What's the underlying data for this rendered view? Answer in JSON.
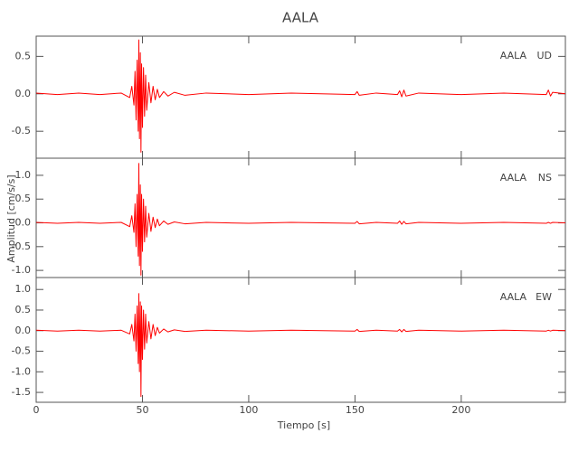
{
  "chart_data": {
    "title": "AALA",
    "ylabel": "Amplitud [cm/s/s]",
    "xlabel": "Tiempo [s]",
    "xlim": [
      0,
      249
    ],
    "xticks": [
      0,
      50,
      100,
      150,
      200
    ],
    "x": [
      0,
      10,
      20,
      30,
      40,
      44,
      45,
      46,
      46.5,
      47,
      47.5,
      48,
      48.3,
      48.6,
      49,
      49.3,
      49.6,
      50,
      50.5,
      51,
      51.5,
      52,
      53,
      54,
      55,
      56,
      57,
      58,
      60,
      62,
      65,
      70,
      80,
      100,
      120,
      150,
      151,
      152,
      160,
      170,
      171,
      172,
      173,
      174,
      180,
      200,
      220,
      240,
      241,
      242,
      243,
      249
    ],
    "panels": [
      {
        "type": "line",
        "station": "AALA",
        "component": "UD",
        "color": "#ff0000",
        "ylim": [
          -0.86,
          0.77
        ],
        "yticks": [
          -0.5,
          {
            "value": 0,
            "label": "0.0"
          },
          0.5
        ],
        "values": [
          0.01,
          -0.01,
          0.01,
          -0.01,
          0.01,
          -0.05,
          0.1,
          -0.15,
          0.3,
          -0.35,
          0.45,
          -0.5,
          0.72,
          -0.6,
          0.55,
          -0.78,
          0.4,
          -0.45,
          0.35,
          -0.3,
          0.25,
          -0.22,
          0.15,
          -0.12,
          0.1,
          -0.08,
          0.06,
          -0.05,
          0.03,
          -0.03,
          0.02,
          -0.02,
          0.01,
          -0.01,
          0.01,
          -0.01,
          0.03,
          -0.02,
          0.01,
          -0.01,
          0.04,
          -0.04,
          0.05,
          -0.03,
          0.01,
          -0.01,
          0.01,
          -0.01,
          0.05,
          -0.03,
          0.02,
          0
        ]
      },
      {
        "type": "line",
        "station": "AALA",
        "component": "NS",
        "color": "#ff0000",
        "ylim": [
          -1.15,
          1.36
        ],
        "yticks": [
          {
            "value": -1,
            "label": "-1.0"
          },
          -0.5,
          {
            "value": 0,
            "label": "0.0"
          },
          0.5,
          {
            "value": 1,
            "label": "1.0"
          }
        ],
        "values": [
          0.01,
          -0.01,
          0.01,
          -0.01,
          0.01,
          -0.08,
          0.15,
          -0.2,
          0.4,
          -0.5,
          0.6,
          -0.7,
          1.25,
          -0.9,
          0.8,
          -1.1,
          0.6,
          -0.6,
          0.5,
          -0.4,
          0.35,
          -0.3,
          0.2,
          -0.18,
          0.12,
          -0.1,
          0.08,
          -0.06,
          0.04,
          -0.03,
          0.02,
          -0.02,
          0.01,
          -0.01,
          0.01,
          -0.01,
          0.03,
          -0.02,
          0.01,
          -0.01,
          0.04,
          -0.03,
          0.03,
          -0.02,
          0.01,
          -0.01,
          0.01,
          -0.01,
          0.01,
          -0.01,
          0.01,
          0
        ]
      },
      {
        "type": "line",
        "station": "AALA",
        "component": "EW",
        "color": "#ff0000",
        "ylim": [
          -1.74,
          1.29
        ],
        "yticks": [
          -1.5,
          {
            "value": -1,
            "label": "-1.0"
          },
          -0.5,
          {
            "value": 0,
            "label": "0.0"
          },
          0.5,
          {
            "value": 1,
            "label": "1.0"
          }
        ],
        "values": [
          0.01,
          -0.01,
          0.01,
          -0.01,
          0.01,
          -0.08,
          0.15,
          -0.25,
          0.4,
          -0.5,
          0.6,
          -0.8,
          0.9,
          -1.0,
          0.7,
          -1.6,
          0.6,
          -0.7,
          0.5,
          -0.45,
          0.4,
          -0.3,
          0.22,
          -0.2,
          0.15,
          -0.12,
          0.08,
          -0.06,
          0.04,
          -0.03,
          0.02,
          -0.02,
          0.01,
          -0.01,
          0.01,
          -0.01,
          0.03,
          -0.02,
          0.01,
          -0.01,
          0.03,
          -0.03,
          0.03,
          -0.02,
          0.01,
          -0.01,
          0.01,
          -0.01,
          0.01,
          -0.01,
          0.01,
          0
        ]
      }
    ]
  }
}
